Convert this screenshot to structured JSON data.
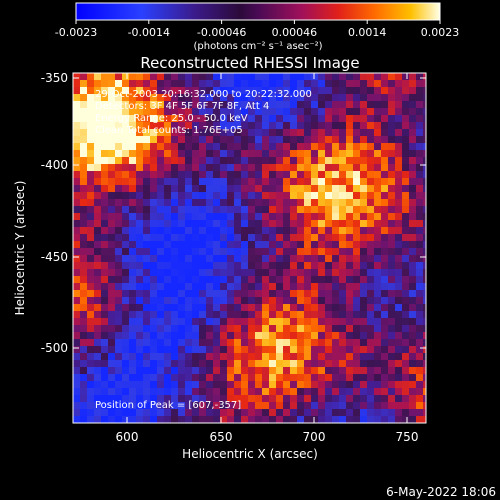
{
  "colorbar": {
    "tick_labels": [
      "-0.0023",
      "-0.0014",
      "-0.00046",
      "0.00046",
      "0.0014",
      "0.0023"
    ],
    "unit_label": "(photons cm⁻² s⁻¹ asec⁻²)"
  },
  "title": "Reconstructed RHESSI Image",
  "info_lines": [
    "29-Oct-2003 20:16:32.000 to 20:22:32.000",
    "Detectors: 3F 4F 5F 6F 7F 8F, Att 4",
    "Energy Range: 25.0 - 50.0 keV",
    "Clean    Total counts: 1.76E+05"
  ],
  "peak_label": "Position of Peak = [607,-357]",
  "x_axis": {
    "label": "Heliocentric X (arcsec)",
    "ticks": [
      "600",
      "650",
      "700",
      "750"
    ]
  },
  "y_axis": {
    "label": "Heliocentric Y (arcsec)",
    "ticks": [
      "-350",
      "-400",
      "-450",
      "-500"
    ]
  },
  "timestamp": "6-May-2022 18:06",
  "colors": {
    "background": "#000000",
    "text": "#ffffff"
  }
}
